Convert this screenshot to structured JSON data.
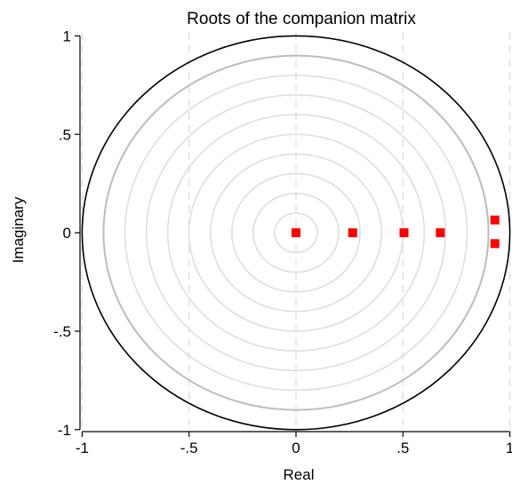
{
  "chart_data": {
    "type": "scatter",
    "title": "Roots of the companion matrix",
    "xlabel": "Real",
    "ylabel": "Imaginary",
    "xlim": [
      -1.01,
      1.01
    ],
    "ylim": [
      -1.01,
      1.02
    ],
    "xticks": [
      -1,
      -0.5,
      0,
      0.5,
      1
    ],
    "xtick_labels": [
      "-1",
      "-.5",
      "0",
      ".5",
      "1"
    ],
    "yticks": [
      -1,
      -0.5,
      0,
      0.5,
      1
    ],
    "ytick_labels": [
      "-1",
      "-.5",
      "0",
      ".5",
      "1"
    ],
    "grid": "dashed vertical lines at x ticks",
    "unit_circle": true,
    "reference_circle_radii": [
      0.1,
      0.2,
      0.3,
      0.4,
      0.5,
      0.6,
      0.7,
      0.8,
      0.9
    ],
    "highlight_circle_radius": 0.9,
    "marker": "square",
    "marker_color": "#ff0000",
    "points": [
      {
        "x": 0.0,
        "y": 0.0
      },
      {
        "x": 0.265,
        "y": 0.0
      },
      {
        "x": 0.505,
        "y": 0.0
      },
      {
        "x": 0.675,
        "y": 0.0
      },
      {
        "x": 0.93,
        "y": 0.065
      },
      {
        "x": 0.93,
        "y": -0.055
      }
    ]
  }
}
